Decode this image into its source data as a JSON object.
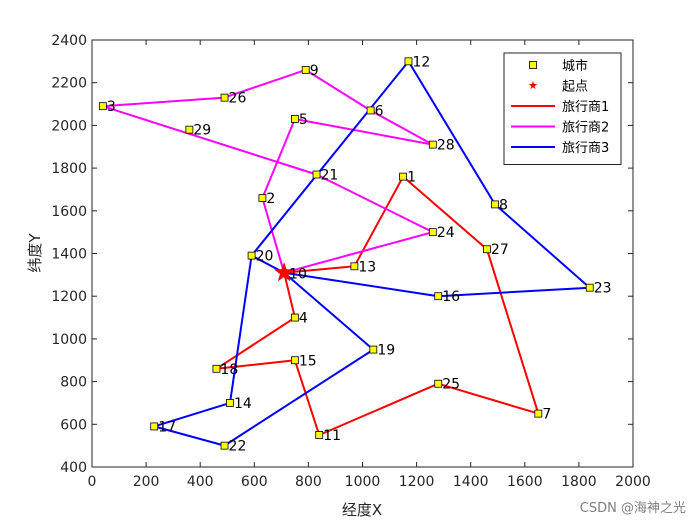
{
  "chart_data": {
    "type": "scatter",
    "xlabel": "经度X",
    "ylabel": "纬度Y",
    "xlim": [
      0,
      2000
    ],
    "ylim": [
      400,
      2400
    ],
    "xticks": [
      0,
      200,
      400,
      600,
      800,
      1000,
      1200,
      1400,
      1600,
      1800,
      2000
    ],
    "yticks": [
      400,
      600,
      800,
      1000,
      1200,
      1400,
      1600,
      1800,
      2000,
      2200,
      2400
    ],
    "grid": false,
    "legend_position": "top-right",
    "legend": [
      {
        "label": "城市",
        "kind": "square",
        "color": "#ffff00"
      },
      {
        "label": "起点",
        "kind": "star",
        "color": "#ff0000"
      },
      {
        "label": "旅行商1",
        "kind": "line",
        "color": "#ff0000"
      },
      {
        "label": "旅行商2",
        "kind": "line",
        "color": "#ff00ff"
      },
      {
        "label": "旅行商3",
        "kind": "line",
        "color": "#0000ff"
      }
    ],
    "depot": {
      "label": "10",
      "x": 710,
      "y": 1310
    },
    "cities": [
      {
        "id": "1",
        "x": 1150,
        "y": 1760
      },
      {
        "id": "2",
        "x": 630,
        "y": 1660
      },
      {
        "id": "3",
        "x": 40,
        "y": 2090
      },
      {
        "id": "5",
        "x": 750,
        "y": 2030
      },
      {
        "id": "4",
        "x": 750,
        "y": 1100
      },
      {
        "id": "6",
        "x": 1030,
        "y": 2070
      },
      {
        "id": "7",
        "x": 1650,
        "y": 650
      },
      {
        "id": "8",
        "x": 1490,
        "y": 1630
      },
      {
        "id": "9",
        "x": 790,
        "y": 2260
      },
      {
        "id": "11",
        "x": 840,
        "y": 550
      },
      {
        "id": "12",
        "x": 1170,
        "y": 2300
      },
      {
        "id": "13",
        "x": 970,
        "y": 1340
      },
      {
        "id": "14",
        "x": 510,
        "y": 700
      },
      {
        "id": "15",
        "x": 750,
        "y": 900
      },
      {
        "id": "16",
        "x": 1280,
        "y": 1200
      },
      {
        "id": "17",
        "x": 230,
        "y": 590
      },
      {
        "id": "18",
        "x": 460,
        "y": 860
      },
      {
        "id": "19",
        "x": 1040,
        "y": 950
      },
      {
        "id": "20",
        "x": 590,
        "y": 1390
      },
      {
        "id": "21",
        "x": 830,
        "y": 1770
      },
      {
        "id": "22",
        "x": 490,
        "y": 500
      },
      {
        "id": "23",
        "x": 1840,
        "y": 1240
      },
      {
        "id": "24",
        "x": 1260,
        "y": 1500
      },
      {
        "id": "25",
        "x": 1280,
        "y": 790
      },
      {
        "id": "26",
        "x": 490,
        "y": 2130
      },
      {
        "id": "27",
        "x": 1460,
        "y": 1420
      },
      {
        "id": "28",
        "x": 1260,
        "y": 1910
      },
      {
        "id": "29",
        "x": 360,
        "y": 1980
      }
    ],
    "routes": [
      {
        "name": "旅行商1",
        "color": "#ff0000",
        "path": [
          "10",
          "13",
          "1",
          "27",
          "7",
          "25",
          "11",
          "15",
          "18",
          "4",
          "10"
        ]
      },
      {
        "name": "旅行商2",
        "color": "#ff00ff",
        "path": [
          "10",
          "24",
          "21",
          "3",
          "26",
          "9",
          "6",
          "28",
          "5",
          "2",
          "10"
        ]
      },
      {
        "name": "旅行商3",
        "color": "#0000ff",
        "path": [
          "10",
          "20",
          "12",
          "8",
          "23",
          "16",
          "10",
          "19",
          "22",
          "17",
          "14",
          "20"
        ]
      }
    ]
  },
  "watermark": "CSDN @海神之光"
}
